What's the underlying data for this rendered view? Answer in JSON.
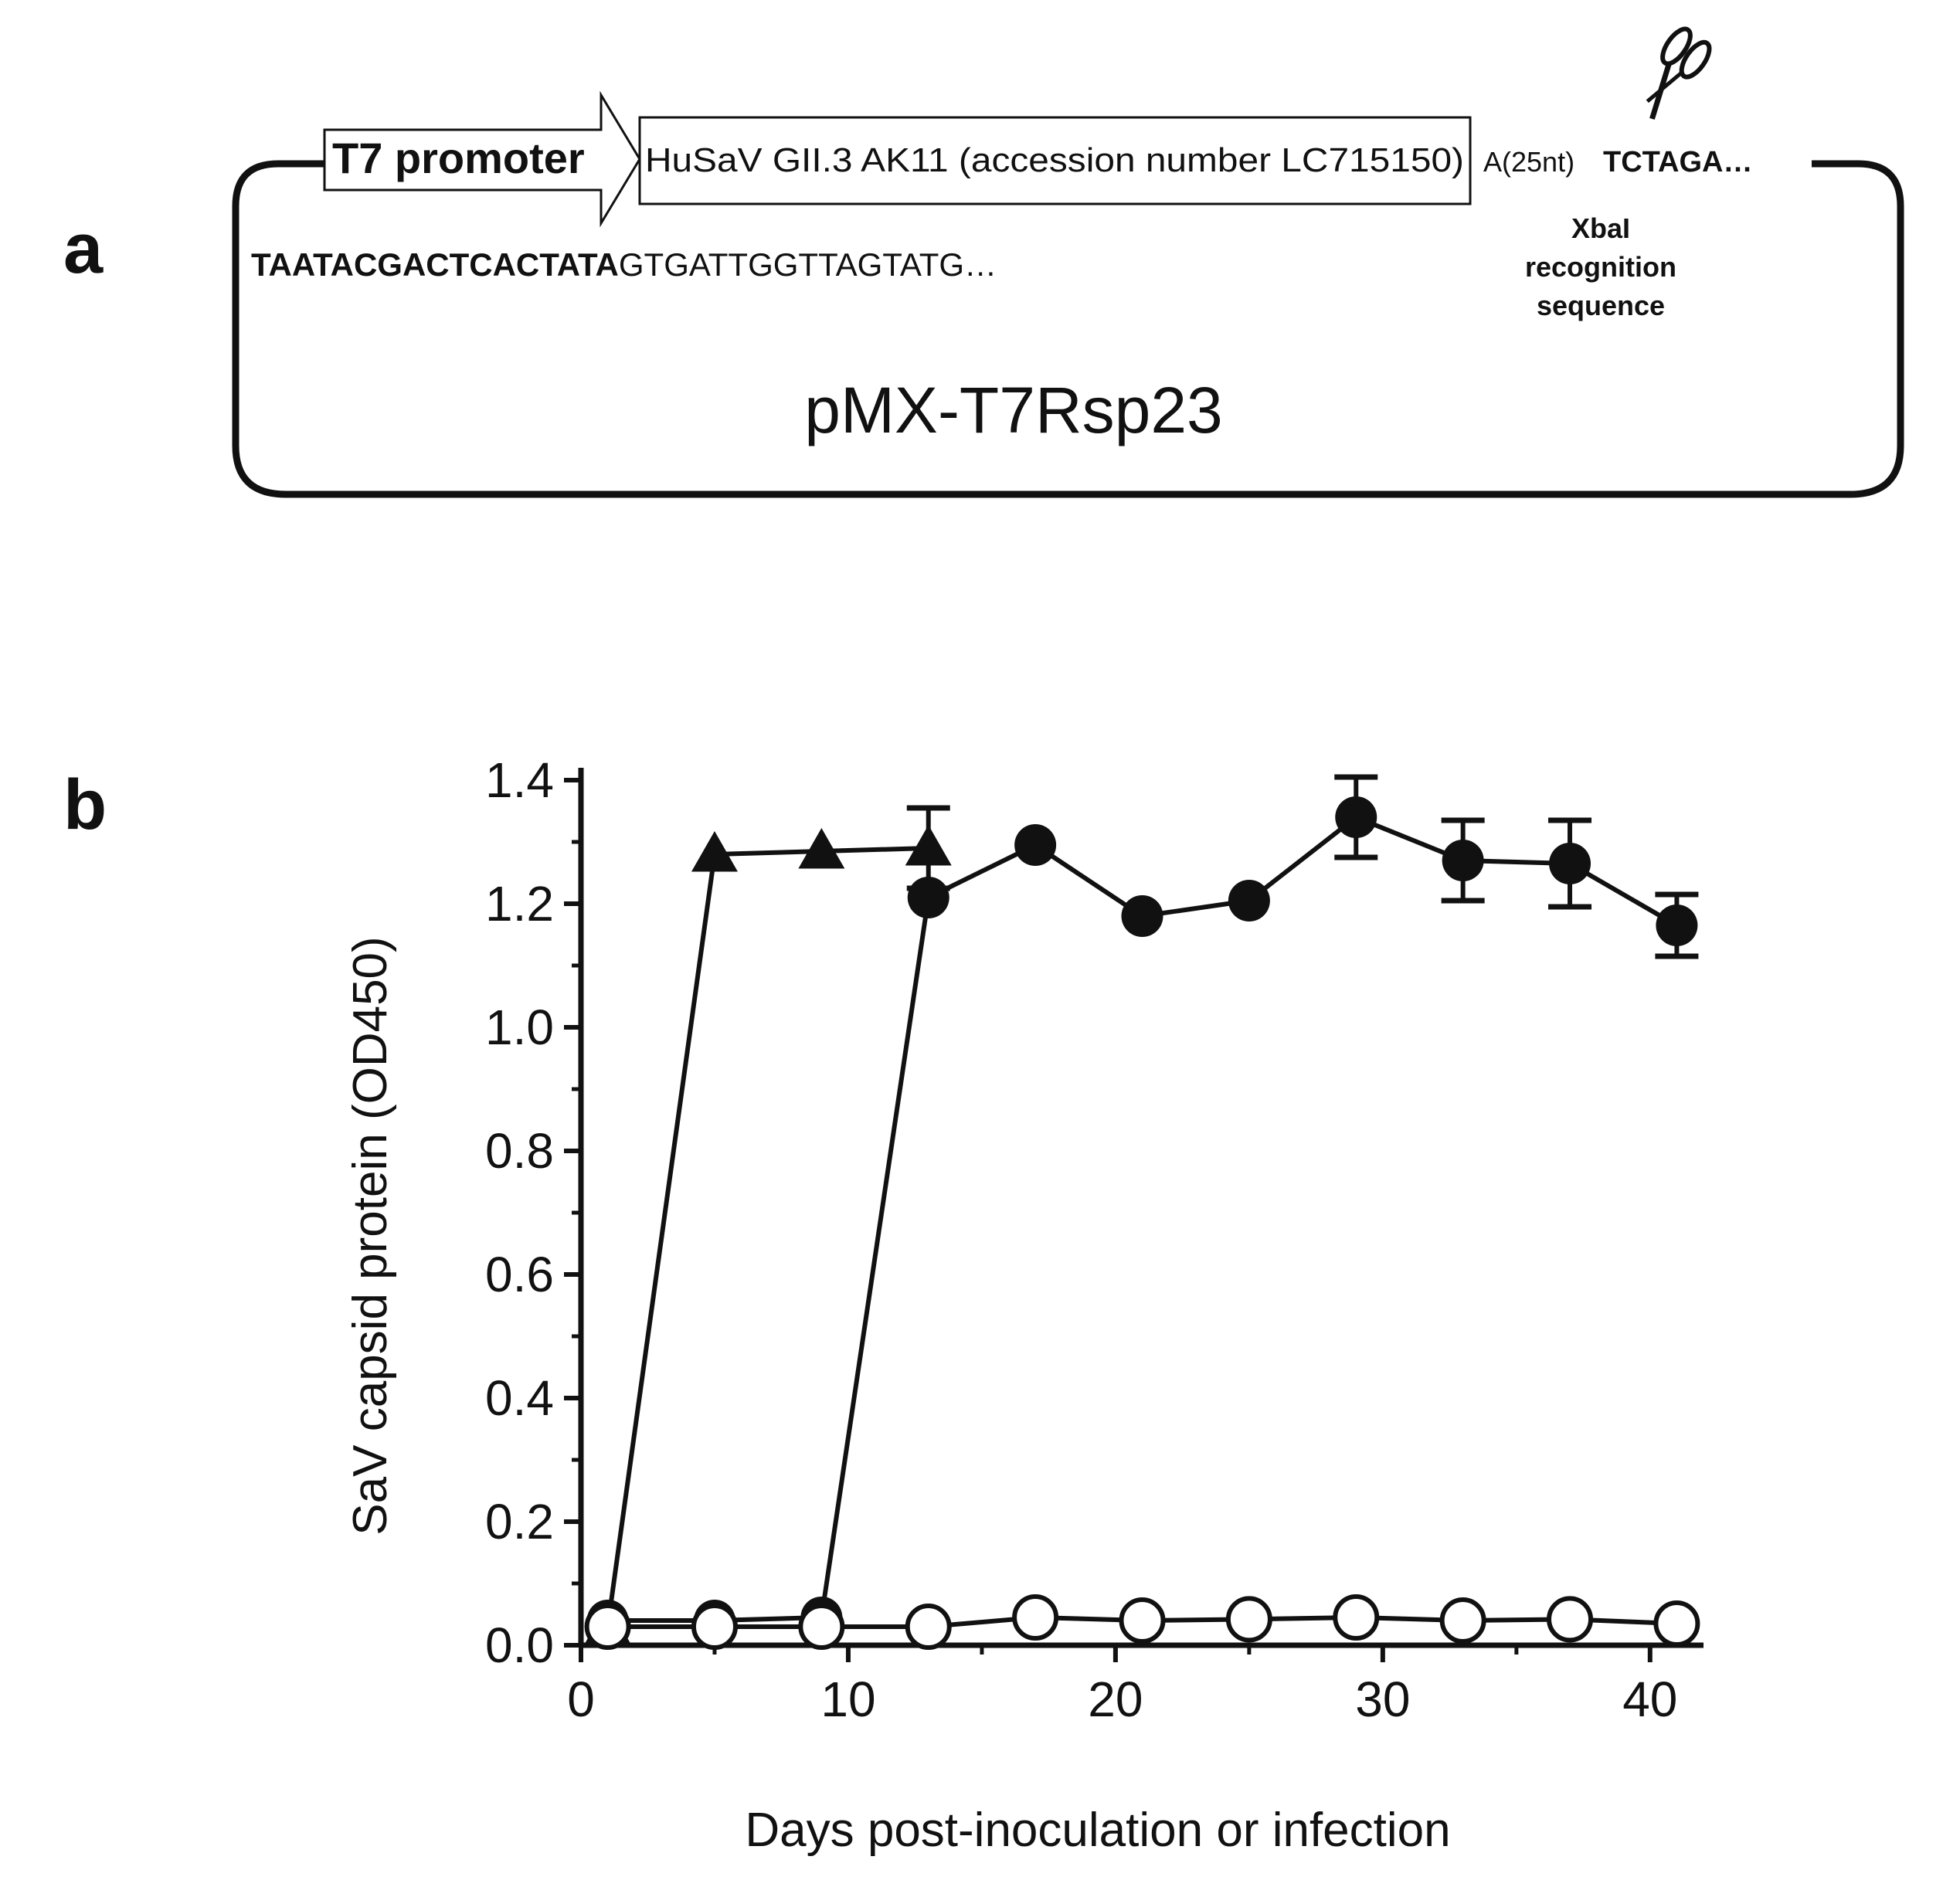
{
  "panel_a": {
    "letter": "a",
    "promoter_label": "T7 promoter",
    "insert_label": "HuSaV GII.3 AK11 (accession number LC715150)",
    "polyA_label": "A(25nt)",
    "site_sequence": "TCTAGA…",
    "seq_bold": "TAATACGACTCACTATA",
    "seq_plain": "GTGATTGGTTAGTATG…",
    "xbai_line1": "XbaI",
    "xbai_line2": "recognition",
    "xbai_line3": "sequence",
    "plasmid_name": "pMX-T7Rsp23",
    "scissors_icon": "scissors-icon"
  },
  "panel_b": {
    "letter": "b"
  },
  "chart_data": {
    "type": "line",
    "title": "",
    "xlabel": "Days post-inoculation or infection",
    "ylabel": "SaV capsid protein (OD450)",
    "xlim": [
      0,
      42
    ],
    "ylim": [
      0,
      1.4
    ],
    "xticks": [
      0,
      10,
      20,
      30,
      40
    ],
    "yticks": [
      0.0,
      0.2,
      0.4,
      0.6,
      0.8,
      1.0,
      1.2,
      1.4
    ],
    "ytick_labels": [
      "0.0",
      "0.2",
      "0.4",
      "0.6",
      "0.8",
      "1.0",
      "1.2",
      "1.4"
    ],
    "xtick_labels": [
      "0",
      "10",
      "20",
      "30",
      "40"
    ],
    "grid": false,
    "legend": "none",
    "series": [
      {
        "name": "triangle",
        "marker": "filled-triangle",
        "x": [
          1,
          5,
          9,
          13
        ],
        "y": [
          0.03,
          1.28,
          1.285,
          1.29
        ],
        "err": [
          0,
          0,
          0,
          0.065
        ]
      },
      {
        "name": "filled-circle",
        "marker": "filled-circle",
        "x": [
          1,
          5,
          9,
          13,
          17,
          21,
          25,
          29,
          33,
          37,
          41
        ],
        "y": [
          0.04,
          0.04,
          0.045,
          1.21,
          1.295,
          1.18,
          1.205,
          1.34,
          1.27,
          1.265,
          1.165
        ],
        "err": [
          0,
          0,
          0,
          0,
          0,
          0,
          0,
          0.065,
          0.065,
          0.07,
          0.05
        ]
      },
      {
        "name": "open-circle",
        "marker": "open-circle",
        "x": [
          1,
          5,
          9,
          13,
          17,
          21,
          25,
          29,
          33,
          37,
          41
        ],
        "y": [
          0.03,
          0.03,
          0.03,
          0.03,
          0.045,
          0.04,
          0.042,
          0.045,
          0.04,
          0.042,
          0.035
        ],
        "err": [
          0,
          0,
          0,
          0,
          0,
          0,
          0,
          0,
          0,
          0,
          0
        ]
      }
    ]
  }
}
